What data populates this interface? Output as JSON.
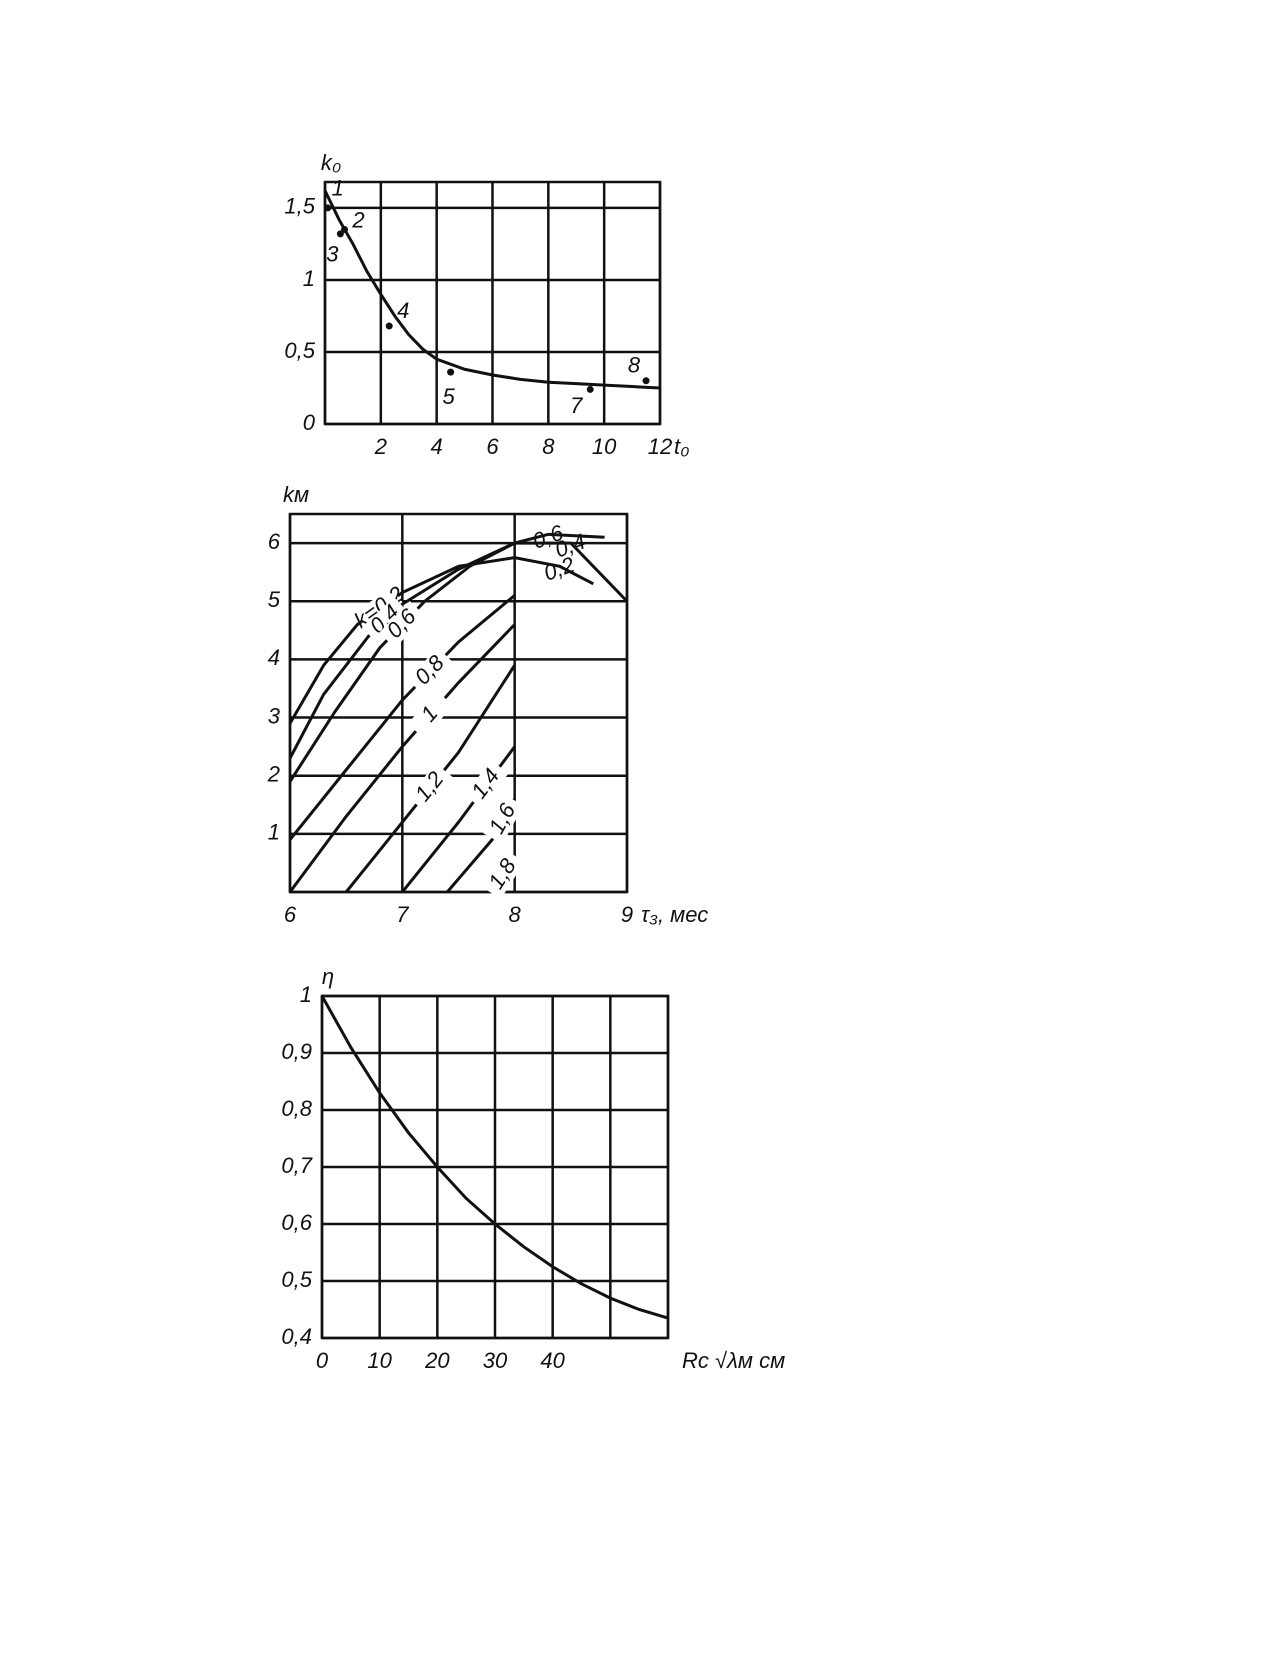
{
  "chart_data": [
    {
      "type": "line",
      "ylabel": "k₀",
      "xlabel": "t₀",
      "xlim": [
        0,
        12
      ],
      "ylim": [
        0,
        1.68
      ],
      "xticks": [
        {
          "value": 0,
          "label": null
        },
        2,
        4,
        6,
        8,
        10,
        12
      ],
      "yticks": [
        0,
        {
          "value": 0.5,
          "label": "0,5"
        },
        1,
        {
          "value": 1.5,
          "label": "1,5"
        }
      ],
      "grid": true,
      "series": [
        {
          "color": "#111",
          "x": [
            0,
            0.5,
            1,
            1.5,
            2,
            2.5,
            3,
            3.5,
            4,
            5,
            6,
            7,
            8,
            9,
            10,
            11,
            12
          ],
          "values": [
            1.62,
            1.42,
            1.25,
            1.06,
            0.9,
            0.75,
            0.62,
            0.52,
            0.45,
            0.38,
            0.34,
            0.31,
            0.29,
            0.28,
            0.27,
            0.26,
            0.25
          ]
        }
      ],
      "points": {
        "labels": [
          "1",
          "2",
          "3",
          "4",
          "5",
          "7",
          "8"
        ],
        "x": [
          0.1,
          0.7,
          0.55,
          2.3,
          4.5,
          9.5,
          11.5
        ],
        "values": [
          1.5,
          1.35,
          1.32,
          0.68,
          0.36,
          0.24,
          0.3
        ]
      }
    },
    {
      "type": "line",
      "ylabel": "kм",
      "xlabel": "τ₃, мес",
      "xlim": [
        6,
        9
      ],
      "ylim": [
        0,
        6.5
      ],
      "xticks": [
        6,
        7,
        8,
        9
      ],
      "yticks": [
        {
          "value": 0,
          "label": null
        },
        1,
        2,
        3,
        4,
        5,
        6
      ],
      "grid": true,
      "series": [
        {
          "name": "k=0,2",
          "color": "#111",
          "x": [
            6,
            6.3,
            6.6,
            7,
            7.5,
            8,
            8.4,
            8.7
          ],
          "values": [
            2.9,
            3.9,
            4.6,
            5.15,
            5.6,
            5.75,
            5.6,
            5.3
          ]
        },
        {
          "name": "0,4",
          "color": "#111",
          "x": [
            6,
            6.3,
            6.7,
            7,
            7.5,
            8,
            8.5,
            9
          ],
          "values": [
            2.3,
            3.4,
            4.4,
            4.95,
            5.55,
            6.0,
            6.0,
            5.0
          ]
        },
        {
          "name": "0,6",
          "color": "#111",
          "x": [
            6,
            6.4,
            6.8,
            7.2,
            7.6,
            8,
            8.3,
            8.8
          ],
          "values": [
            1.9,
            3.1,
            4.2,
            5.0,
            5.6,
            6.0,
            6.15,
            6.1
          ]
        },
        {
          "name": "0,8",
          "color": "#111",
          "x": [
            6,
            6.5,
            7,
            7.5,
            8
          ],
          "values": [
            0.9,
            2.1,
            3.3,
            4.3,
            5.1
          ]
        },
        {
          "name": "1",
          "color": "#111",
          "x": [
            6,
            6.5,
            7,
            7.5,
            8
          ],
          "values": [
            0,
            1.3,
            2.5,
            3.6,
            4.6
          ]
        },
        {
          "name": "1,2",
          "color": "#111",
          "x": [
            6.5,
            7,
            7.5,
            8
          ],
          "values": [
            0,
            1.2,
            2.4,
            3.9
          ]
        },
        {
          "name": "1,4",
          "color": "#111",
          "x": [
            7,
            7.5,
            8
          ],
          "values": [
            0,
            1.2,
            2.5
          ]
        },
        {
          "name": "1,6",
          "color": "#111",
          "x": [
            7.4,
            7.8,
            8
          ],
          "values": [
            0,
            0.9,
            1.6
          ]
        },
        {
          "name": "1,8",
          "color": "#111",
          "x": [
            7.8,
            8
          ],
          "values": [
            0,
            0.6
          ]
        }
      ],
      "annotations": [
        "0,6",
        "0,4",
        "0,2"
      ]
    },
    {
      "type": "line",
      "ylabel": "η",
      "xlabel": "Rc √λм cм",
      "xlim": [
        0,
        60
      ],
      "ylim": [
        0.4,
        1.0
      ],
      "xticks": [
        0,
        10,
        20,
        30,
        40,
        {
          "value": 50,
          "label": null
        },
        {
          "value": 60,
          "label": null
        }
      ],
      "yticks": [
        {
          "value": 0.4,
          "label": "0,4"
        },
        {
          "value": 0.5,
          "label": "0,5"
        },
        {
          "value": 0.6,
          "label": "0,6"
        },
        {
          "value": 0.7,
          "label": "0,7"
        },
        {
          "value": 0.8,
          "label": "0,8"
        },
        {
          "value": 0.9,
          "label": "0,9"
        },
        1
      ],
      "grid": true,
      "series": [
        {
          "color": "#111",
          "x": [
            0,
            5,
            10,
            15,
            20,
            25,
            30,
            35,
            40,
            45,
            50,
            55,
            60
          ],
          "values": [
            1.0,
            0.91,
            0.83,
            0.76,
            0.7,
            0.645,
            0.6,
            0.56,
            0.525,
            0.495,
            0.47,
            0.45,
            0.435
          ]
        }
      ]
    }
  ]
}
